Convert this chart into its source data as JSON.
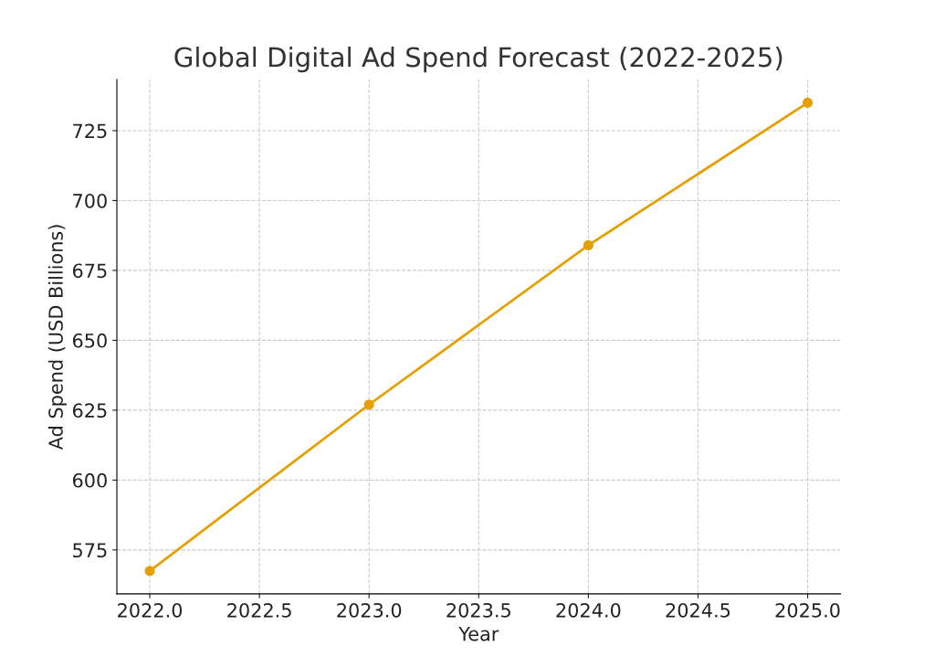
{
  "chart_data": {
    "type": "line",
    "title": "Global Digital Ad Spend Forecast (2022-2025)",
    "xlabel": "Year",
    "ylabel": "Ad Spend (USD Billions)",
    "x": [
      2022,
      2023,
      2024,
      2025
    ],
    "series": [
      {
        "color": "#e69f00",
        "values": [
          567.5,
          627,
          684,
          735
        ]
      }
    ],
    "marker": "circle",
    "line_style": "solid",
    "grid": true,
    "xlim": [
      2021.85,
      2025.15
    ],
    "ylim": [
      559.3,
      743.3
    ],
    "xticks": [
      {
        "value": 2022,
        "label": "2022.0"
      },
      {
        "value": 2022.5,
        "label": "2022.5"
      },
      {
        "value": 2023,
        "label": "2023.0"
      },
      {
        "value": 2023.5,
        "label": "2023.5"
      },
      {
        "value": 2024,
        "label": "2024.0"
      },
      {
        "value": 2024.5,
        "label": "2024.5"
      },
      {
        "value": 2025,
        "label": "2025.0"
      }
    ],
    "yticks": [
      575,
      600,
      625,
      650,
      675,
      700,
      725
    ]
  }
}
